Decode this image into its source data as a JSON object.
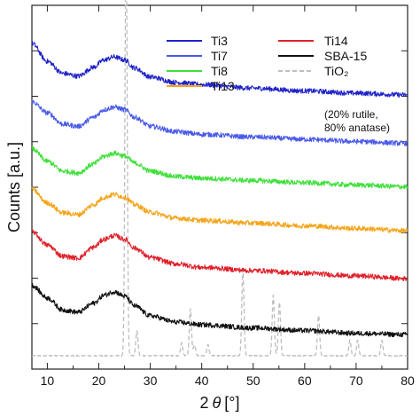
{
  "chart_data": {
    "type": "line",
    "xlabel_main": "2",
    "xlabel_theta": "θ",
    "xlabel_unit": "[°]",
    "ylabel": "Counts [a.u.]",
    "xlim": [
      7,
      80
    ],
    "xticks": [
      10,
      20,
      30,
      40,
      50,
      60,
      70,
      80
    ],
    "grid": false,
    "legend_placement": "top-right",
    "legend_note": [
      "(20% rutile,",
      "80% anatase)"
    ],
    "series": [
      {
        "name": "Ti3",
        "color": "#1f22c8",
        "offset": 5.9,
        "x": [
          7,
          10,
          13,
          16,
          19,
          21,
          23,
          25,
          27,
          30,
          35,
          40,
          50,
          60,
          70,
          80
        ],
        "y": [
          1.25,
          0.85,
          0.58,
          0.52,
          0.72,
          0.88,
          0.95,
          0.88,
          0.7,
          0.5,
          0.38,
          0.33,
          0.25,
          0.19,
          0.14,
          0.1
        ]
      },
      {
        "name": "Ti7",
        "color": "#4a5ae8",
        "offset": 4.85,
        "x": [
          7,
          10,
          13,
          16,
          19,
          21,
          23,
          25,
          27,
          30,
          35,
          40,
          50,
          60,
          70,
          80
        ],
        "y": [
          1.0,
          0.75,
          0.5,
          0.45,
          0.65,
          0.82,
          0.88,
          0.82,
          0.65,
          0.45,
          0.33,
          0.27,
          0.21,
          0.16,
          0.11,
          0.07
        ]
      },
      {
        "name": "Ti8",
        "color": "#3fe03a",
        "offset": 3.9,
        "x": [
          7,
          10,
          13,
          16,
          19,
          21,
          23,
          25,
          27,
          30,
          35,
          40,
          50,
          60,
          70,
          80
        ],
        "y": [
          0.9,
          0.62,
          0.4,
          0.36,
          0.56,
          0.73,
          0.8,
          0.74,
          0.58,
          0.4,
          0.28,
          0.24,
          0.19,
          0.14,
          0.09,
          0.05
        ]
      },
      {
        "name": "Ti13",
        "color": "#f5a418",
        "offset": 2.95,
        "x": [
          7,
          10,
          13,
          16,
          19,
          21,
          23,
          25,
          27,
          30,
          35,
          40,
          50,
          60,
          70,
          80
        ],
        "y": [
          0.95,
          0.64,
          0.42,
          0.38,
          0.6,
          0.76,
          0.83,
          0.77,
          0.6,
          0.43,
          0.3,
          0.25,
          0.19,
          0.13,
          0.07,
          0.02
        ]
      },
      {
        "name": "Ti14",
        "color": "#e0202a",
        "offset": 1.9,
        "x": [
          7,
          10,
          13,
          16,
          19,
          21,
          23,
          25,
          27,
          30,
          35,
          40,
          50,
          60,
          70,
          80
        ],
        "y": [
          1.05,
          0.75,
          0.5,
          0.46,
          0.7,
          0.88,
          0.96,
          0.88,
          0.68,
          0.47,
          0.33,
          0.25,
          0.18,
          0.12,
          0.06,
          0.0
        ]
      },
      {
        "name": "SBA-15",
        "color": "#111111",
        "offset": 0.65,
        "x": [
          7,
          10,
          13,
          16,
          19,
          21,
          23,
          25,
          27,
          30,
          35,
          40,
          50,
          60,
          70,
          80
        ],
        "y": [
          1.1,
          0.82,
          0.55,
          0.5,
          0.7,
          0.88,
          0.96,
          0.86,
          0.64,
          0.42,
          0.28,
          0.22,
          0.15,
          0.09,
          0.03,
          0.0
        ]
      },
      {
        "name": "TiO₂",
        "color": "#bdbdbd",
        "dashed": true,
        "offset": 0.0,
        "baseline": 0.18,
        "peaks": [
          {
            "x": 25.3,
            "h": 9.6,
            "w": 0.3
          },
          {
            "x": 27.4,
            "h": 0.55,
            "w": 0.3
          },
          {
            "x": 36.1,
            "h": 0.3,
            "w": 0.3
          },
          {
            "x": 37.8,
            "h": 1.05,
            "w": 0.3
          },
          {
            "x": 38.6,
            "h": 0.25,
            "w": 0.3
          },
          {
            "x": 41.2,
            "h": 0.25,
            "w": 0.3
          },
          {
            "x": 48.0,
            "h": 1.95,
            "w": 0.3
          },
          {
            "x": 53.9,
            "h": 1.35,
            "w": 0.3
          },
          {
            "x": 55.1,
            "h": 1.2,
            "w": 0.3
          },
          {
            "x": 62.7,
            "h": 0.9,
            "w": 0.3
          },
          {
            "x": 68.8,
            "h": 0.35,
            "w": 0.3
          },
          {
            "x": 70.3,
            "h": 0.35,
            "w": 0.3
          },
          {
            "x": 75.0,
            "h": 0.35,
            "w": 0.3
          }
        ]
      }
    ]
  }
}
